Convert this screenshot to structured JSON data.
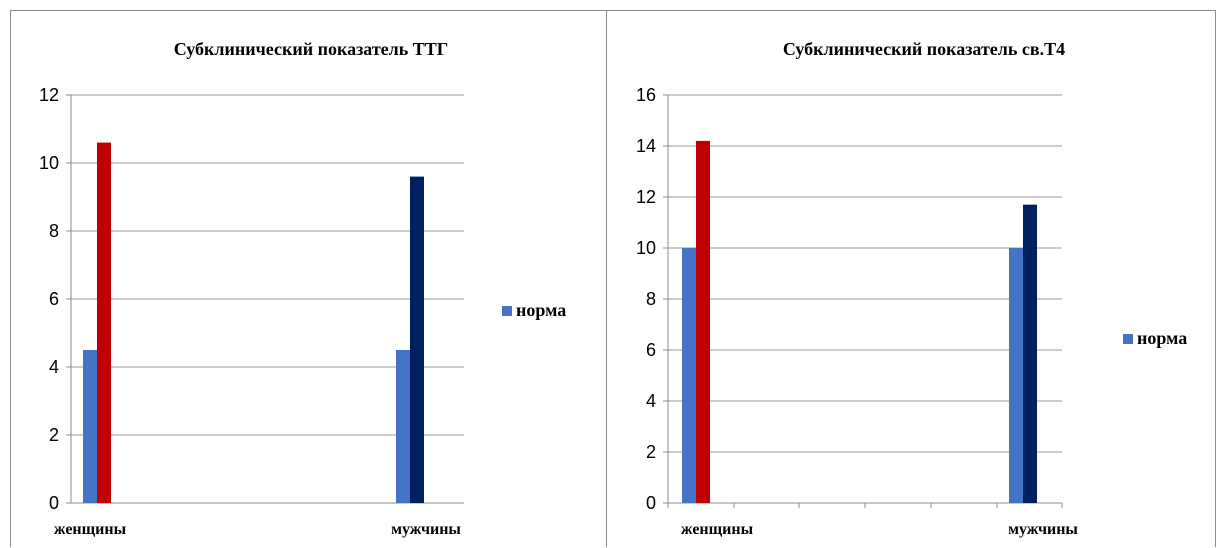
{
  "chart_data": [
    {
      "type": "bar",
      "title": "Субклинический показатель ТТГ",
      "xlabel": "",
      "ylabel": "",
      "categories": [
        "женщины",
        "мужчины"
      ],
      "ylim": [
        0,
        12
      ],
      "yticks": [
        0,
        2,
        4,
        6,
        8,
        10,
        12
      ],
      "grid": true,
      "legend_position": "right",
      "series": [
        {
          "name": "норма",
          "values": [
            4.5,
            4.5
          ],
          "color": "#4472C4"
        },
        {
          "values": [
            10.6,
            null
          ],
          "color": "#C00000"
        },
        {
          "values": [
            null,
            9.6
          ],
          "color": "#002060"
        }
      ]
    },
    {
      "type": "bar",
      "title": "Субклинический показатель св.Т4",
      "xlabel": "",
      "ylabel": "",
      "categories": [
        "женщины",
        "мужчины"
      ],
      "ylim": [
        0,
        16
      ],
      "yticks": [
        0,
        2,
        4,
        6,
        8,
        10,
        12,
        14,
        16
      ],
      "grid": true,
      "legend_position": "right",
      "series": [
        {
          "name": "норма",
          "values": [
            10,
            10
          ],
          "color": "#4472C4"
        },
        {
          "values": [
            14.2,
            null
          ],
          "color": "#C00000"
        },
        {
          "values": [
            null,
            11.7
          ],
          "color": "#002060"
        }
      ]
    }
  ]
}
